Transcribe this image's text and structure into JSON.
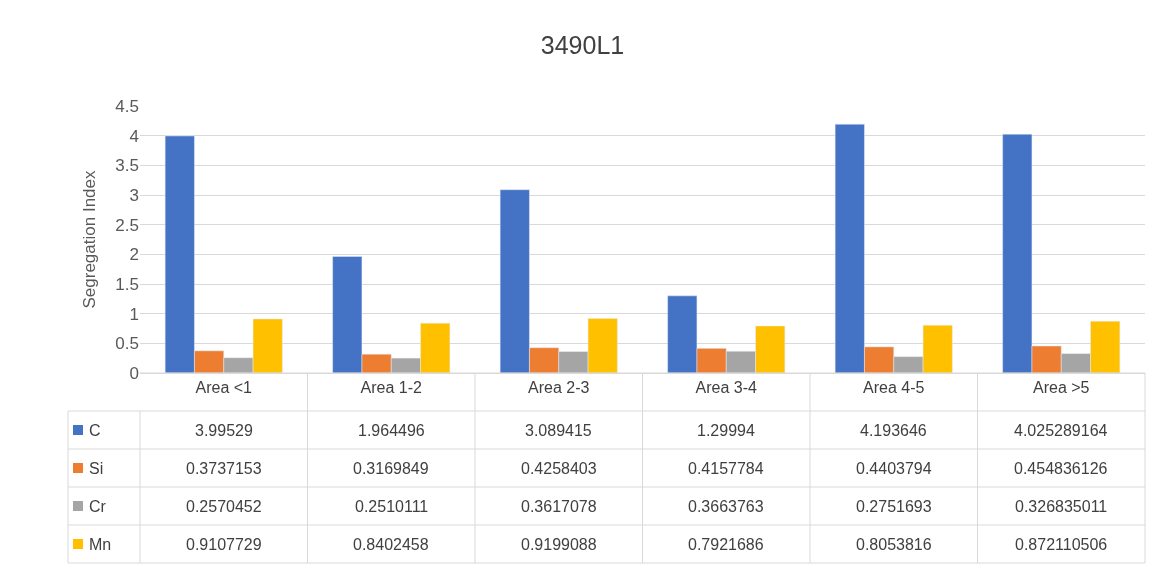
{
  "chart_data": {
    "type": "bar",
    "title": "3490L1",
    "ylabel": "Segregation Index",
    "categories": [
      "Area <1",
      "Area 1-2",
      "Area 2-3",
      "Area 3-4",
      "Area 4-5",
      "Area >5"
    ],
    "series": [
      {
        "name": "C",
        "color": "#4472c4",
        "values": [
          3.99529,
          1.964496,
          3.089415,
          1.29994,
          4.193646,
          4.025289164
        ]
      },
      {
        "name": "Si",
        "color": "#ed7d31",
        "values": [
          0.3737153,
          0.3169849,
          0.4258403,
          0.4157784,
          0.4403794,
          0.454836126
        ]
      },
      {
        "name": "Cr",
        "color": "#a5a5a5",
        "values": [
          0.2570452,
          0.2510111,
          0.3617078,
          0.3663763,
          0.2751693,
          0.326835011
        ]
      },
      {
        "name": "Mn",
        "color": "#ffc000",
        "values": [
          0.9107729,
          0.8402458,
          0.9199088,
          0.7921686,
          0.8053816,
          0.872110506
        ]
      }
    ],
    "ylim": [
      0,
      4.5
    ],
    "yticks": [
      0,
      0.5,
      1,
      1.5,
      2,
      2.5,
      3,
      3.5,
      4,
      4.5
    ],
    "grid": "y",
    "data_labels": true,
    "legend": "bottom"
  }
}
